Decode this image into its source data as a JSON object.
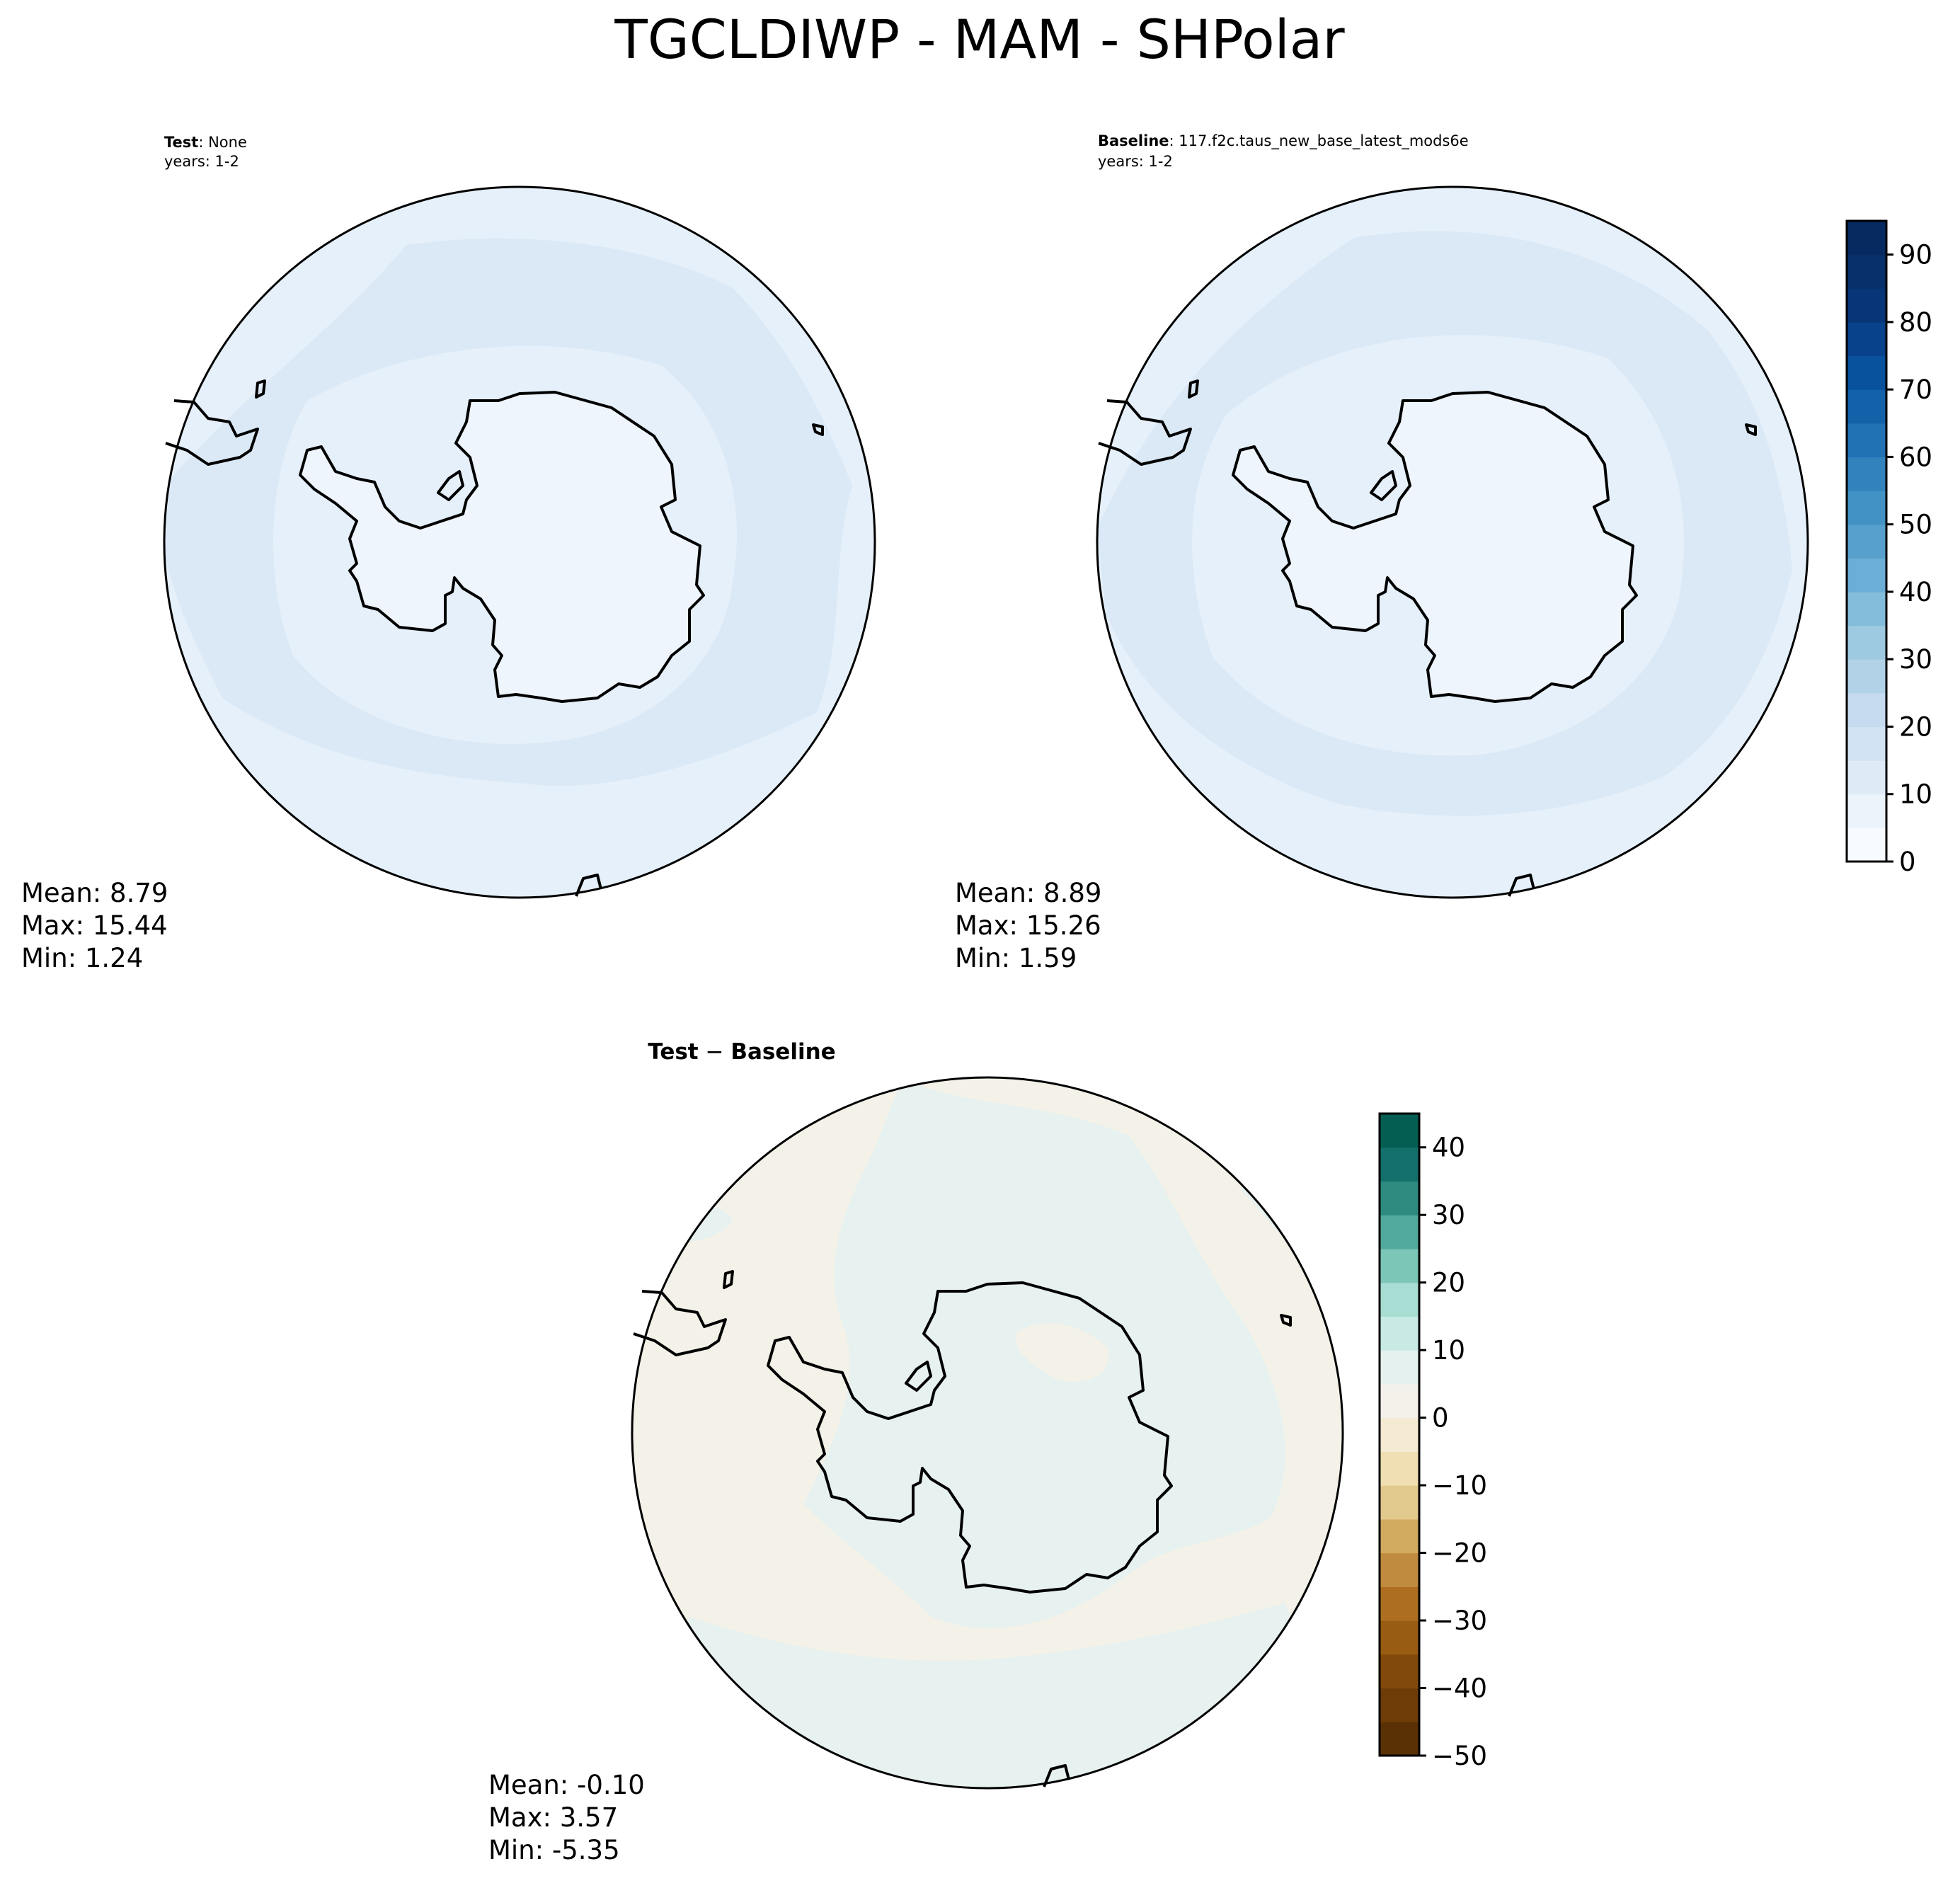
{
  "figure": {
    "title": "TGCLDIWP - MAM - SHPolar"
  },
  "panels": [
    {
      "id": "test",
      "label_bold": "Test",
      "label_rest": ": None",
      "years": "years: 1-2",
      "stats": {
        "mean": "Mean:  8.79",
        "max": "Max: 15.44",
        "min": "Min:  1.24"
      },
      "fills": {
        "ocean": "#e5f0fa",
        "band": "#dbe9f6",
        "land": "#eef5fc"
      }
    },
    {
      "id": "baseline",
      "label_bold": "Baseline",
      "label_rest": ": 117.f2c.taus_new_base_latest_mods6e",
      "years": "years: 1-2",
      "stats": {
        "mean": "Mean:  8.89",
        "max": "Max: 15.26",
        "min": "Min:  1.59"
      },
      "fills": {
        "ocean": "#e5f0fa",
        "band": "#dbe9f6",
        "land": "#eef5fc"
      }
    },
    {
      "id": "difference",
      "label_bold": "Test",
      "label_mid": " − ",
      "label_bold2": "Baseline",
      "stats": {
        "mean": "Mean: -0.10",
        "max": "Max:  3.57",
        "min": "Min: -5.35"
      },
      "fills": {
        "ocean": "#f4f2e8",
        "band": "#e7f1f0",
        "land": "#e7f1f0"
      }
    }
  ],
  "colorbars": [
    {
      "id": "abs-colorbar",
      "colormap": "Blues",
      "range": [
        0,
        95
      ],
      "ticks": [
        "0",
        "10",
        "20",
        "30",
        "40",
        "50",
        "60",
        "70",
        "80",
        "90"
      ],
      "tick_values": [
        0,
        10,
        20,
        30,
        40,
        50,
        60,
        70,
        80,
        90
      ],
      "levels": [
        0,
        5,
        10,
        15,
        20,
        25,
        30,
        35,
        40,
        45,
        50,
        55,
        60,
        65,
        70,
        75,
        80,
        85,
        90,
        95
      ],
      "colors": [
        "#f7fbff",
        "#ebf3fb",
        "#deebf7",
        "#d2e3f3",
        "#c6dbef",
        "#b2d2e8",
        "#9ecae1",
        "#84bcdb",
        "#6baed6",
        "#57a0ce",
        "#4292c6",
        "#3282be",
        "#2171b5",
        "#1361a9",
        "#08519c",
        "#08428a",
        "#083577",
        "#08306b",
        "#072a60"
      ]
    },
    {
      "id": "diff-colorbar",
      "colormap": "BrBG",
      "range": [
        -50,
        45
      ],
      "ticks": [
        "−50",
        "−40",
        "−30",
        "−20",
        "−10",
        "0",
        "10",
        "20",
        "30",
        "40"
      ],
      "tick_values": [
        -50,
        -40,
        -30,
        -20,
        -10,
        0,
        10,
        20,
        30,
        40
      ],
      "levels": [
        -50,
        -45,
        -40,
        -35,
        -30,
        -25,
        -20,
        -15,
        -10,
        -5,
        0,
        5,
        10,
        15,
        20,
        25,
        30,
        35,
        40,
        45
      ],
      "colors": [
        "#5a3005",
        "#6e3c07",
        "#824a0a",
        "#985c12",
        "#ad6f1f",
        "#c08a3f",
        "#d2aa60",
        "#e2c98e",
        "#efdfb2",
        "#f5ead2",
        "#f4f1ea",
        "#e5f1ef",
        "#c9eae4",
        "#a7ddd2",
        "#7cc6b8",
        "#51a99d",
        "#2f8b80",
        "#14706a",
        "#045e52"
      ]
    }
  ]
}
